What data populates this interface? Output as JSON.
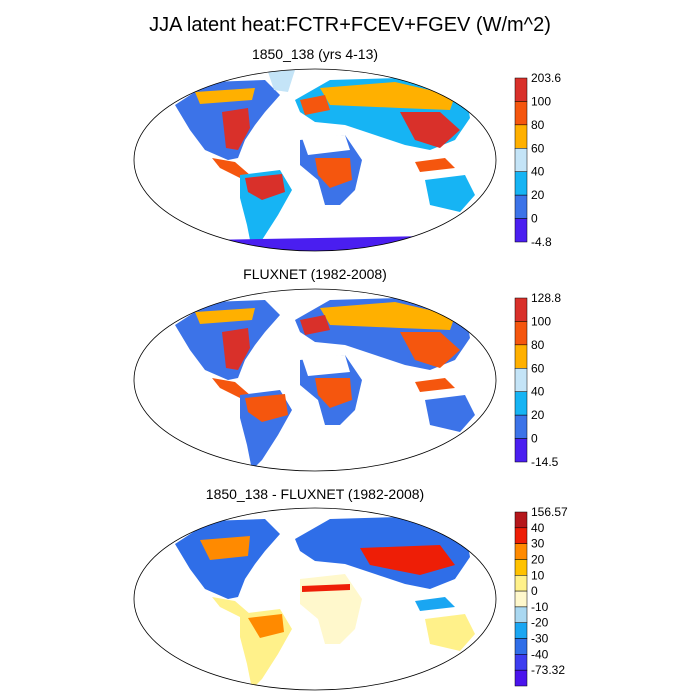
{
  "title": "JJA latent heat:FCTR+FCEV+FGEV (W/m^2)",
  "panels": [
    {
      "title": "1850_138 (yrs 4-13)",
      "colorbar": {
        "labels": [
          "203.6",
          "100",
          "80",
          "60",
          "40",
          "20",
          "0",
          "-4.8"
        ],
        "colors": [
          "#d9302a",
          "#f5560e",
          "#ffb000",
          "#c4e4f7",
          "#16b4f4",
          "#3c73e8",
          "#4a1ef0"
        ]
      }
    },
    {
      "title": "FLUXNET (1982-2008)",
      "colorbar": {
        "labels": [
          "128.8",
          "100",
          "80",
          "60",
          "40",
          "20",
          "0",
          "-14.5"
        ],
        "colors": [
          "#d9302a",
          "#f5560e",
          "#ffb000",
          "#c4e4f7",
          "#16b4f4",
          "#3c73e8",
          "#4a1ef0"
        ]
      }
    },
    {
      "title": "1850_138 - FLUXNET (1982-2008)",
      "colorbar": {
        "labels": [
          "156.57",
          "40",
          "30",
          "20",
          "10",
          "0",
          "-10",
          "-20",
          "-30",
          "-40",
          "-73.32"
        ],
        "colors": [
          "#b5171b",
          "#ee1e06",
          "#ff8a00",
          "#ffc200",
          "#fff18a",
          "#fff8cc",
          "#aad8f1",
          "#1aa6f2",
          "#2f6ee8",
          "#3d3df0",
          "#4a14ed"
        ]
      }
    }
  ]
}
